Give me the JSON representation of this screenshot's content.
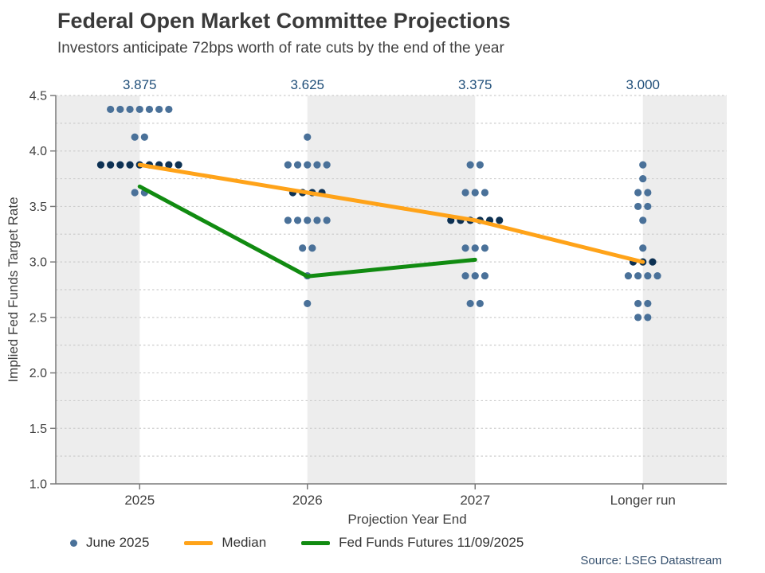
{
  "header": {
    "title": "Federal Open Market Committee Projections",
    "subtitle": "Investors anticipate 72bps worth of rate cuts by the end of the year"
  },
  "legend": [
    {
      "type": "dot",
      "label": "June 2025",
      "color": "#4a7199"
    },
    {
      "type": "line",
      "label": "Median",
      "color": "#ffa319"
    },
    {
      "type": "line",
      "label": "Fed Funds Futures 11/09/2025",
      "color": "#118b11"
    }
  ],
  "source": "Source: LSEG Datastream",
  "chart_data": {
    "type": "scatter",
    "title": "Federal Open Market Committee Projections",
    "subtitle": "Investors anticipate 72bps worth of rate cuts by the end of the year",
    "xlabel": "Projection Year End",
    "ylabel": "Implied Fed Funds Target Rate",
    "ylim": [
      1.0,
      4.5
    ],
    "yticks": [
      "4.5",
      "4.0",
      "3.5",
      "3.0",
      "2.5",
      "2.0",
      "1.5",
      "1.0"
    ],
    "grid_interval": 0.25,
    "grid_on": true,
    "categories": [
      "2025",
      "2026",
      "2027",
      "Longer run"
    ],
    "top_labels": {
      "values": [
        "3.875",
        "3.625",
        "3.375",
        "3.000"
      ],
      "color": "#1f4e79"
    },
    "dot_plot": {
      "name": "June 2025",
      "dot_color": "#4a7199",
      "median_dot_color": "#0d3153",
      "groups": [
        {
          "category": "2025",
          "rows": [
            {
              "rate": 4.375,
              "count": 7
            },
            {
              "rate": 4.125,
              "count": 2
            },
            {
              "rate": 3.875,
              "count": 9,
              "median": true
            },
            {
              "rate": 3.625,
              "count": 2
            }
          ]
        },
        {
          "category": "2026",
          "rows": [
            {
              "rate": 4.125,
              "count": 1
            },
            {
              "rate": 3.875,
              "count": 5
            },
            {
              "rate": 3.625,
              "count": 4,
              "median": true
            },
            {
              "rate": 3.375,
              "count": 5
            },
            {
              "rate": 3.125,
              "count": 2
            },
            {
              "rate": 2.875,
              "count": 1
            },
            {
              "rate": 2.625,
              "count": 1
            }
          ]
        },
        {
          "category": "2027",
          "rows": [
            {
              "rate": 3.875,
              "count": 2
            },
            {
              "rate": 3.625,
              "count": 3
            },
            {
              "rate": 3.375,
              "count": 6,
              "median": true
            },
            {
              "rate": 3.125,
              "count": 3
            },
            {
              "rate": 2.875,
              "count": 3
            },
            {
              "rate": 2.625,
              "count": 2
            }
          ]
        },
        {
          "category": "Longer run",
          "rows": [
            {
              "rate": 3.875,
              "count": 1
            },
            {
              "rate": 3.75,
              "count": 1
            },
            {
              "rate": 3.625,
              "count": 2
            },
            {
              "rate": 3.5,
              "count": 2
            },
            {
              "rate": 3.375,
              "count": 1
            },
            {
              "rate": 3.125,
              "count": 1
            },
            {
              "rate": 3.0,
              "count": 3,
              "median": true
            },
            {
              "rate": 2.875,
              "count": 4
            },
            {
              "rate": 2.625,
              "count": 2
            },
            {
              "rate": 2.5,
              "count": 2
            }
          ]
        }
      ]
    },
    "series": [
      {
        "name": "Median",
        "color": "#ffa319",
        "x": [
          "2025",
          "2026",
          "2027",
          "Longer run"
        ],
        "values": [
          3.875,
          3.625,
          3.375,
          3.0
        ]
      },
      {
        "name": "Fed Funds Futures 11/09/2025",
        "color": "#118b11",
        "x": [
          "2025",
          "2026",
          "2027"
        ],
        "values": [
          3.68,
          2.87,
          3.02
        ]
      }
    ],
    "band_color": "#ededed",
    "grid_color": "#cdcdcd",
    "axis_color": "#7a7a7a",
    "tick_label_color": "#404040",
    "legend_position": "bottom",
    "source": "Source: LSEG Datastream"
  }
}
